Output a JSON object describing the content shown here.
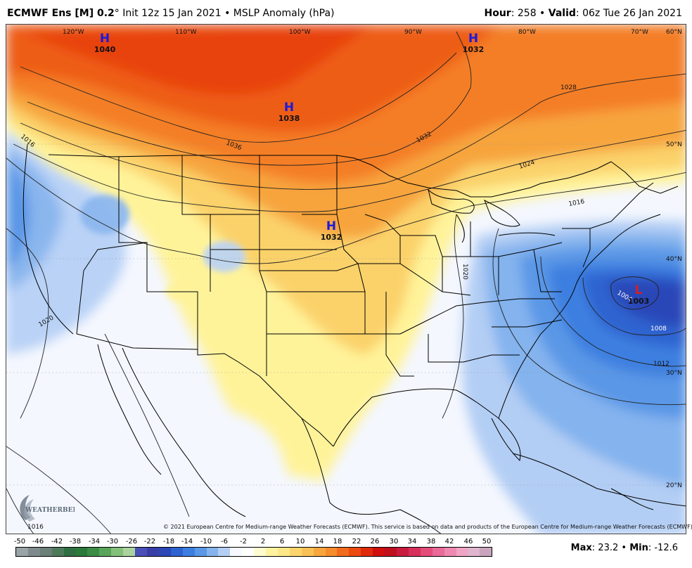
{
  "header": {
    "product": "ECMWF Ens [M] 0.2",
    "degree": "°",
    "init": " Init 12z 15 Jan 2021",
    "sep": " • ",
    "field": "MSLP Anomaly (hPa)",
    "hour_label": "Hour",
    "hour_value": ": 258",
    "valid_label": "Valid",
    "valid_value": ": 06z Tue 26 Jan 2021"
  },
  "map": {
    "longitude_labels": [
      "120°W",
      "110°W",
      "100°W",
      "90°W",
      "80°W",
      "70°W",
      "60°N"
    ],
    "latitude_labels": [
      "50°N",
      "40°N",
      "30°N",
      "20°N"
    ],
    "pressure_centers": [
      {
        "type": "H",
        "value": "1040",
        "color": "#1a1adc"
      },
      {
        "type": "H",
        "value": "1032",
        "color": "#1a1adc"
      },
      {
        "type": "H",
        "value": "1038",
        "color": "#1a1adc"
      },
      {
        "type": "H",
        "value": "1032",
        "color": "#1a1adc"
      },
      {
        "type": "L",
        "value": "1003",
        "color": "#d42020"
      }
    ],
    "isobar_labels": [
      "1036",
      "1032",
      "1028",
      "1024",
      "1016",
      "1016",
      "1020",
      "1020",
      "1016",
      "1008",
      "1012",
      "1004"
    ],
    "copyright": "© 2021 European Centre for Medium-range Weather Forecasts (ECMWF). This service is based on data and products of the European Centre for Medium-range Weather Forecasts (ECMWF).",
    "logo_text": "WEATHERBELL"
  },
  "colorbar": {
    "ticks": [
      "-50",
      "-46",
      "-42",
      "-38",
      "-34",
      "-30",
      "-26",
      "-22",
      "-18",
      "-14",
      "-10",
      "-6",
      "-2",
      "2",
      "6",
      "10",
      "14",
      "18",
      "22",
      "26",
      "30",
      "34",
      "38",
      "42",
      "46",
      "50"
    ],
    "colors": [
      "#9aa3a6",
      "#7e8a8e",
      "#6c7f78",
      "#4e7a5c",
      "#2f6f42",
      "#2c7a3a",
      "#3b8c45",
      "#58a55a",
      "#83c07a",
      "#aad39e",
      "#4b4fb8",
      "#3a3fa8",
      "#2b47b8",
      "#2d63d0",
      "#3c7fe0",
      "#5a97e6",
      "#84b3ee",
      "#b3cef4",
      "#f7f9ff",
      "#ffffff",
      "#fffccf",
      "#fff3a0",
      "#fde889",
      "#fbd56c",
      "#f9c055",
      "#f7a63e",
      "#f68c2b",
      "#f26b1c",
      "#ec4a10",
      "#e02a0c",
      "#d0100e",
      "#c0101e",
      "#c81c3e",
      "#d8305c",
      "#e44c7a",
      "#ea6a98",
      "#ee88b0",
      "#f0a4c4",
      "#dfb4cf",
      "#c9a4bd"
    ]
  },
  "maxmin": {
    "max_label": "Max",
    "max_value": ": 23.2",
    "sep": " • ",
    "min_label": "Min",
    "min_value": ": -12.6"
  }
}
